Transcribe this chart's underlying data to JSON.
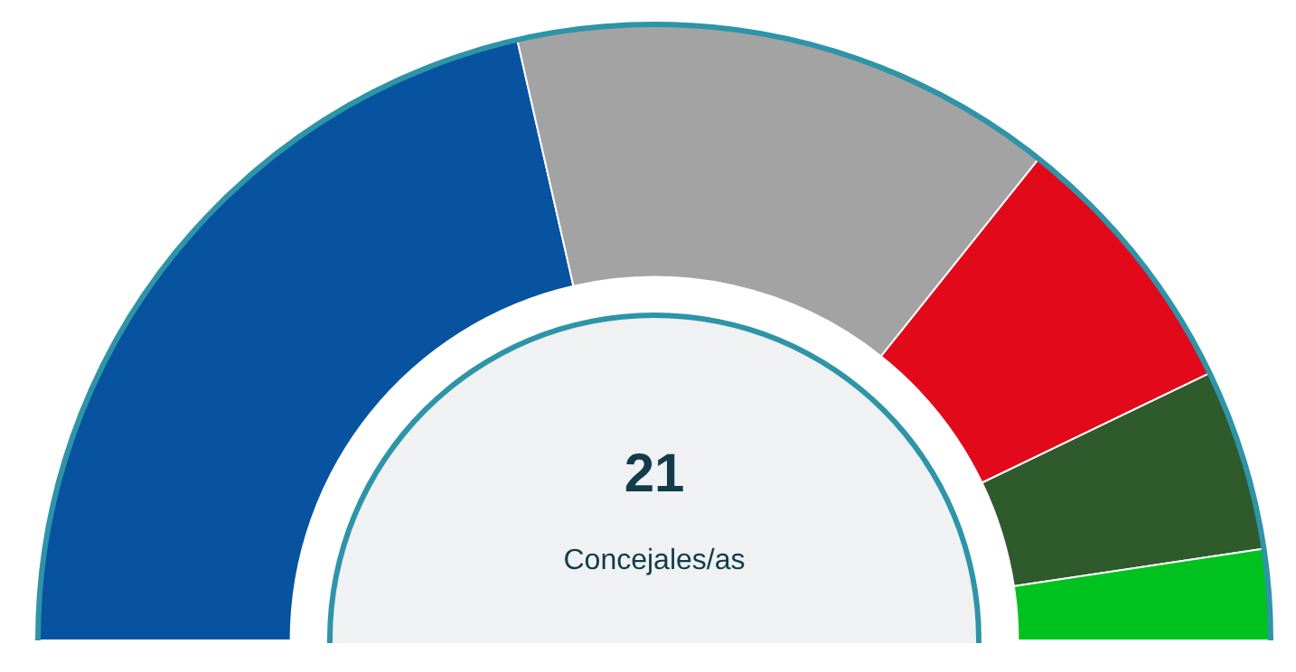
{
  "chart_data": {
    "type": "donut",
    "categories": [
      null,
      null,
      null,
      null,
      null
    ],
    "values": [
      42.86,
      28.57,
      14.29,
      9.52,
      4.76
    ],
    "colors": [
      "#0753a0",
      "#a3a3a3",
      "#e20a1a",
      "#2f5a2b",
      "#00c21e"
    ],
    "annotations": [
      "21",
      "Concejales/as"
    ]
  }
}
